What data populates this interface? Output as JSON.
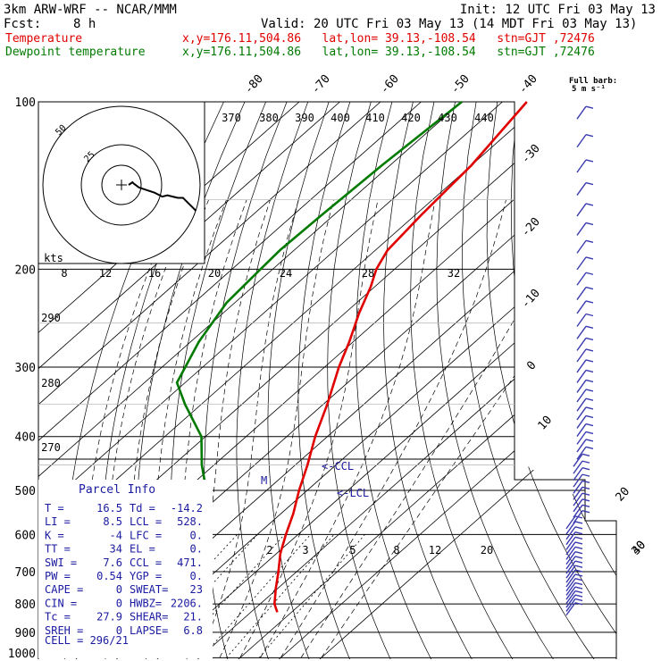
{
  "header": {
    "model": "3km ARW-WRF -- NCAR/MMM",
    "init": "Init: 12 UTC Fri 03 May 13",
    "fcst_label": "Fcst:",
    "fcst_value": "8 h",
    "valid": "Valid: 20 UTC Fri 03 May 13 (14 MDT Fri 03 May 13)",
    "lines": [
      {
        "name": "Temperature",
        "location": "x,y=176.11,504.86   lat,lon= 39.13,-108.54   stn=GJT ,72476",
        "color": "#e00000"
      },
      {
        "name": "Dewpoint temperature",
        "location": "x,y=176.11,504.86   lat,lon= 39.13,-108.54   stn=GJT ,72476",
        "color": "#007a00"
      }
    ]
  },
  "chart_data": {
    "type": "line",
    "chart_kind": "skew-T log-P sounding",
    "pressure_labels": [
      "100",
      "200",
      "300",
      "400",
      "500",
      "600",
      "700",
      "800",
      "900",
      "1000"
    ],
    "temperature_labels": [
      "-80",
      "-70",
      "-60",
      "-50",
      "-40",
      "-30",
      "-20",
      "-10",
      "0",
      "10",
      "20",
      "30",
      "40"
    ],
    "theta_labels": [
      "370",
      "380",
      "390",
      "400",
      "410",
      "420",
      "430",
      "440"
    ],
    "hodo_axis_labels": [
      "kts",
      "8",
      "12",
      "16",
      "20",
      "24",
      "28",
      "32"
    ],
    "hodo_ring_labels": [
      "50",
      "25"
    ],
    "lower_theta_labels": [
      "290",
      "280",
      "270"
    ],
    "mixing_ratio_labels": [
      "2",
      "3",
      "5",
      "8",
      "12",
      "20"
    ],
    "annotations": {
      "ccl_upper": "<-CCL",
      "ccl_lower": "<-LCL",
      "m_marker": "M"
    },
    "full_barb": [
      "Full barb:",
      "5 m s⁻¹"
    ],
    "series": [
      {
        "name": "Temperature",
        "color": "#e00000",
        "points": [
          {
            "p": 100,
            "t": -64
          },
          {
            "p": 130,
            "t": -60
          },
          {
            "p": 160,
            "t": -58.5
          },
          {
            "p": 185,
            "t": -57
          },
          {
            "p": 200,
            "t": -54.5
          },
          {
            "p": 215,
            "t": -51
          },
          {
            "p": 240,
            "t": -46.5
          },
          {
            "p": 270,
            "t": -41
          },
          {
            "p": 300,
            "t": -36.5
          },
          {
            "p": 350,
            "t": -29
          },
          {
            "p": 400,
            "t": -23
          },
          {
            "p": 450,
            "t": -17
          },
          {
            "p": 500,
            "t": -12
          },
          {
            "p": 550,
            "t": -7
          },
          {
            "p": 600,
            "t": -3
          },
          {
            "p": 650,
            "t": 1
          },
          {
            "p": 700,
            "t": 5.5
          },
          {
            "p": 750,
            "t": 9.5
          },
          {
            "p": 800,
            "t": 13.5
          },
          {
            "p": 828,
            "t": 16.5
          }
        ]
      },
      {
        "name": "Dewpoint temperature",
        "color": "#007a00",
        "points": [
          {
            "p": 100,
            "t": -80
          },
          {
            "p": 130,
            "t": -82
          },
          {
            "p": 160,
            "t": -83
          },
          {
            "p": 185,
            "t": -83.5
          },
          {
            "p": 200,
            "t": -83
          },
          {
            "p": 230,
            "t": -82
          },
          {
            "p": 270,
            "t": -78
          },
          {
            "p": 320,
            "t": -72
          },
          {
            "p": 350,
            "t": -64
          },
          {
            "p": 400,
            "t": -51
          },
          {
            "p": 450,
            "t": -43
          },
          {
            "p": 480,
            "t": -38
          },
          {
            "p": 500,
            "t": -36.5
          },
          {
            "p": 550,
            "t": -37
          },
          {
            "p": 600,
            "t": -39
          },
          {
            "p": 650,
            "t": -36
          },
          {
            "p": 700,
            "t": -32
          },
          {
            "p": 740,
            "t": -32.5
          },
          {
            "p": 780,
            "t": -16
          },
          {
            "p": 810,
            "t": -15.5
          },
          {
            "p": 828,
            "t": -14.2
          }
        ]
      }
    ],
    "hodograph": [
      [
        0,
        0
      ],
      [
        1.5,
        -1
      ],
      [
        2,
        -0.5
      ],
      [
        4,
        1
      ],
      [
        7,
        2
      ],
      [
        10,
        3
      ],
      [
        13,
        4.5
      ],
      [
        15,
        4
      ],
      [
        17,
        4.5
      ],
      [
        19,
        5
      ],
      [
        21,
        5
      ],
      [
        22,
        6
      ],
      [
        23,
        7
      ],
      [
        24,
        8
      ],
      [
        25,
        9
      ],
      [
        26,
        10
      ]
    ]
  },
  "parcel_info": {
    "title": "Parcel Info",
    "rows": [
      [
        "T   =",
        "16.5",
        "Td  =",
        "-14.2"
      ],
      [
        "LI  =",
        "8.5",
        "LCL =",
        "528."
      ],
      [
        "K   =",
        "-4",
        "LFC =",
        "0."
      ],
      [
        "TT  =",
        "34",
        "EL  =",
        "0."
      ],
      [
        "SWI =",
        "7.6",
        "CCL =",
        "471."
      ],
      [
        "PW  =",
        "0.54",
        "YGP =",
        "0."
      ],
      [
        "CAPE =",
        "0",
        "SWEAT=",
        "23"
      ],
      [
        "CIN =",
        "0",
        "HWBZ=",
        "2206."
      ],
      [
        "Tc  =",
        "27.9",
        "SHEAR=",
        "21."
      ],
      [
        "SREH =",
        "0",
        "LAPSE=",
        "6.8"
      ]
    ],
    "cell": "CELL = 296/21"
  }
}
